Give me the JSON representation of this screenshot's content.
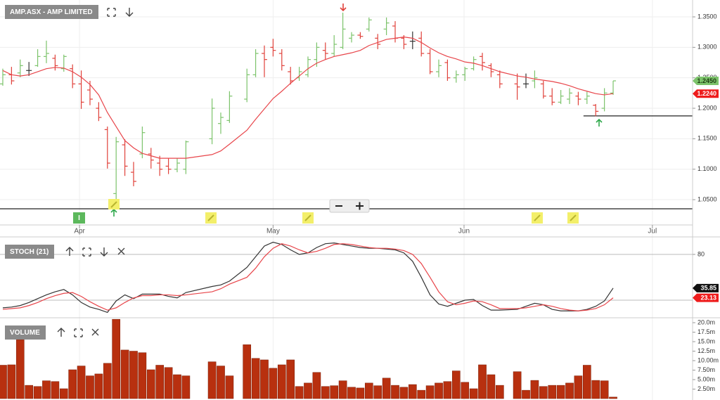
{
  "chart_data": [
    {
      "type": "ohlc",
      "title": "AMP.ASX - AMP LIMITED",
      "annotation": "I",
      "x": [
        0,
        1,
        2,
        3,
        4,
        5,
        6,
        7,
        8,
        9,
        10,
        11,
        12,
        13,
        14,
        15,
        16,
        17,
        18,
        19,
        20,
        21,
        24,
        25,
        26,
        28,
        29,
        30,
        31,
        32,
        33,
        34,
        35,
        36,
        37,
        38,
        39,
        40,
        41,
        42,
        43,
        44,
        45,
        46,
        47,
        48,
        49,
        50,
        51,
        52,
        53,
        54,
        55,
        56,
        57,
        59,
        60,
        61,
        62,
        63,
        64,
        65,
        66,
        67,
        68,
        69,
        70
      ],
      "open": [
        1.24,
        1.255,
        1.258,
        1.262,
        1.27,
        1.285,
        1.282,
        1.265,
        1.265,
        1.24,
        1.23,
        1.2,
        1.165,
        1.06,
        1.14,
        1.095,
        1.125,
        1.125,
        1.11,
        1.105,
        1.1,
        1.1,
        1.15,
        1.175,
        1.18,
        1.215,
        1.255,
        1.29,
        1.3,
        1.29,
        1.26,
        1.25,
        1.255,
        1.28,
        1.295,
        1.29,
        1.3,
        1.315,
        1.32,
        1.33,
        1.315,
        1.33,
        1.335,
        1.315,
        1.31,
        1.315,
        1.29,
        1.26,
        1.275,
        1.25,
        1.255,
        1.265,
        1.285,
        1.27,
        1.255,
        1.24,
        1.24,
        1.245,
        1.24,
        1.22,
        1.21,
        1.215,
        1.22,
        1.215,
        1.205,
        1.2,
        1.225
      ],
      "high": [
        1.265,
        1.268,
        1.28,
        1.276,
        1.297,
        1.311,
        1.288,
        1.288,
        1.272,
        1.262,
        1.245,
        1.21,
        1.17,
        1.153,
        1.149,
        1.112,
        1.17,
        1.135,
        1.122,
        1.118,
        1.118,
        1.147,
        1.216,
        1.193,
        1.228,
        1.265,
        1.297,
        1.303,
        1.314,
        1.297,
        1.268,
        1.268,
        1.285,
        1.308,
        1.308,
        1.32,
        1.357,
        1.325,
        1.325,
        1.349,
        1.322,
        1.349,
        1.343,
        1.32,
        1.326,
        1.326,
        1.297,
        1.28,
        1.28,
        1.262,
        1.268,
        1.285,
        1.291,
        1.274,
        1.262,
        1.257,
        1.257,
        1.262,
        1.245,
        1.233,
        1.23,
        1.233,
        1.227,
        1.227,
        1.207,
        1.233,
        1.245
      ],
      "low": [
        1.237,
        1.239,
        1.251,
        1.253,
        1.268,
        1.274,
        1.262,
        1.26,
        1.233,
        1.199,
        1.205,
        1.179,
        1.101,
        1.043,
        1.089,
        1.072,
        1.118,
        1.101,
        1.089,
        1.092,
        1.095,
        1.092,
        1.141,
        1.158,
        1.176,
        1.21,
        1.251,
        1.251,
        1.285,
        1.262,
        1.239,
        1.245,
        1.251,
        1.268,
        1.28,
        1.285,
        1.297,
        1.308,
        1.314,
        1.326,
        1.297,
        1.32,
        1.308,
        1.297,
        1.297,
        1.285,
        1.256,
        1.251,
        1.245,
        1.242,
        1.245,
        1.262,
        1.262,
        1.251,
        1.233,
        1.214,
        1.233,
        1.233,
        1.216,
        1.205,
        1.207,
        1.207,
        1.205,
        1.207,
        1.187,
        1.195,
        1.222
      ],
      "close": [
        1.255,
        1.245,
        1.27,
        1.262,
        1.285,
        1.29,
        1.27,
        1.285,
        1.24,
        1.21,
        1.215,
        1.185,
        1.11,
        1.145,
        1.105,
        1.08,
        1.16,
        1.115,
        1.1,
        1.1,
        1.11,
        1.145,
        1.2,
        1.185,
        1.22,
        1.255,
        1.29,
        1.28,
        1.295,
        1.27,
        1.245,
        1.26,
        1.28,
        1.3,
        1.29,
        1.305,
        1.33,
        1.32,
        1.318,
        1.345,
        1.305,
        1.34,
        1.315,
        1.305,
        1.31,
        1.29,
        1.26,
        1.27,
        1.25,
        1.255,
        1.265,
        1.28,
        1.275,
        1.26,
        1.24,
        1.235,
        1.24,
        1.25,
        1.22,
        1.21,
        1.22,
        1.225,
        1.215,
        1.22,
        1.195,
        1.225,
        1.245
      ],
      "close_last_label": "1.2450",
      "up_color": "#7cc36b",
      "down_color": "#e0413a",
      "flat_color": "#333333",
      "overlay": {
        "color": "#e8454a",
        "last_label": "1.2240",
        "values": [
          1.262,
          1.255,
          1.253,
          1.255,
          1.26,
          1.265,
          1.267,
          1.266,
          1.26,
          1.251,
          1.239,
          1.222,
          1.193,
          1.17,
          1.147,
          1.135,
          1.126,
          1.122,
          1.118,
          1.118,
          1.118,
          1.118,
          1.124,
          1.13,
          1.141,
          1.164,
          1.182,
          1.199,
          1.216,
          1.228,
          1.241,
          1.253,
          1.265,
          1.274,
          1.28,
          1.285,
          1.288,
          1.291,
          1.295,
          1.303,
          1.308,
          1.313,
          1.315,
          1.317,
          1.315,
          1.308,
          1.299,
          1.291,
          1.285,
          1.281,
          1.276,
          1.274,
          1.27,
          1.265,
          1.26,
          1.253,
          1.251,
          1.248,
          1.246,
          1.244,
          1.241,
          1.237,
          1.232,
          1.228,
          1.224,
          1.222,
          1.224
        ]
      },
      "levels": [
        {
          "value": 1.1875,
          "from": 66.6
        },
        {
          "value": 1.035
        }
      ],
      "xlim": [
        -0.32,
        79.11
      ],
      "ylim": [
        1.0085,
        1.3777
      ],
      "xticks": [
        {
          "value": 8.8,
          "label": "Apr"
        },
        {
          "value": 31,
          "label": "May"
        },
        {
          "value": 52.9,
          "label": "Jun"
        },
        {
          "value": 74.5,
          "label": "Jul"
        }
      ],
      "yticks": [
        {
          "value": 1.05,
          "label": "1.0500"
        },
        {
          "value": 1.1,
          "label": "1.1000"
        },
        {
          "value": 1.15,
          "label": "1.1500"
        },
        {
          "value": 1.2,
          "label": "1.2000"
        },
        {
          "value": 1.25,
          "label": "1.2500"
        },
        {
          "value": 1.3,
          "label": "1.3000"
        },
        {
          "value": 1.35,
          "label": "1.3500"
        }
      ],
      "grid": true
    },
    {
      "type": "line",
      "title": "STOCH (21)",
      "x": [
        0,
        1,
        2,
        3,
        4,
        5,
        6,
        7,
        8,
        9,
        10,
        11,
        12,
        13,
        14,
        15,
        16,
        17,
        18,
        19,
        20,
        21,
        24,
        25,
        26,
        28,
        29,
        30,
        31,
        32,
        33,
        34,
        35,
        36,
        37,
        38,
        39,
        40,
        41,
        42,
        43,
        44,
        45,
        46,
        47,
        48,
        49,
        50,
        51,
        52,
        53,
        54,
        55,
        56,
        57,
        59,
        60,
        61,
        62,
        63,
        64,
        65,
        66,
        67,
        68,
        69,
        70
      ],
      "series": [
        {
          "color": "#333333",
          "last_label": "35.85",
          "values": [
            10,
            11,
            13,
            17,
            22,
            27,
            31,
            34,
            27,
            17,
            11,
            8,
            4,
            19,
            27,
            22,
            28,
            28,
            28,
            25,
            23,
            30,
            38,
            40,
            45,
            63,
            77,
            91,
            96,
            93,
            86,
            80,
            82,
            89,
            94,
            95,
            93,
            91,
            89,
            88,
            88,
            87,
            86,
            82,
            71,
            50,
            27,
            15,
            12,
            16,
            20,
            21,
            13,
            7,
            7,
            8,
            12,
            16,
            14,
            8,
            6,
            6,
            6,
            8,
            12,
            19,
            35.85
          ]
        },
        {
          "color": "#e8454a",
          "last_label": "23.13",
          "values": [
            8,
            9,
            10,
            13,
            17,
            22,
            26,
            29,
            30,
            25,
            18,
            12,
            7,
            10,
            17,
            23,
            26,
            26,
            27,
            27,
            26,
            27,
            31,
            35,
            41,
            50,
            62,
            77,
            88,
            94,
            91,
            86,
            82,
            84,
            88,
            93,
            94,
            93,
            91,
            89,
            88,
            88,
            87,
            85,
            80,
            68,
            50,
            31,
            18,
            14,
            16,
            19,
            18,
            14,
            9,
            9,
            10,
            12,
            14,
            12,
            9,
            7,
            6,
            7,
            9,
            14,
            23.13
          ]
        }
      ],
      "levels": [
        20,
        80
      ],
      "xlim": [
        -0.32,
        79.11
      ],
      "ylim": [
        -3,
        102
      ],
      "yticks": [
        80
      ]
    },
    {
      "type": "bar",
      "title": "VOLUME",
      "color": "#b8300f",
      "x": [
        0,
        1,
        2,
        3,
        4,
        5,
        6,
        7,
        8,
        9,
        10,
        11,
        12,
        13,
        14,
        15,
        16,
        17,
        18,
        19,
        20,
        21,
        24,
        25,
        26,
        28,
        29,
        30,
        31,
        32,
        33,
        34,
        35,
        36,
        37,
        38,
        39,
        40,
        41,
        42,
        43,
        44,
        45,
        46,
        47,
        48,
        49,
        50,
        51,
        52,
        53,
        54,
        55,
        56,
        57,
        59,
        60,
        61,
        62,
        63,
        64,
        65,
        66,
        67,
        68,
        69,
        70
      ],
      "values": [
        8.8,
        8.9,
        15.5,
        3.5,
        3.2,
        4.7,
        4.5,
        2.6,
        7.6,
        8.6,
        6.0,
        6.5,
        9.3,
        20.9,
        12.8,
        12.5,
        12.1,
        7.6,
        8.8,
        8.2,
        6.3,
        6.0,
        9.7,
        8.6,
        6.0,
        14.2,
        10.6,
        10.2,
        8.0,
        8.9,
        10.2,
        3.2,
        4.1,
        6.9,
        3.2,
        3.4,
        4.7,
        3.0,
        2.8,
        4.1,
        3.4,
        5.4,
        3.5,
        3.0,
        3.7,
        2.2,
        3.4,
        4.1,
        4.5,
        7.3,
        4.3,
        2.6,
        8.9,
        6.3,
        3.5,
        7.1,
        2.2,
        4.8,
        3.2,
        3.5,
        3.5,
        4.1,
        6.0,
        8.8,
        4.8,
        4.7,
        0.4
      ],
      "xlim": [
        -0.32,
        79.11
      ],
      "ylim": [
        0,
        21.3
      ],
      "yticks": [
        {
          "value": 2.5,
          "label": "2.50m"
        },
        {
          "value": 5,
          "label": "5.00m"
        },
        {
          "value": 7.5,
          "label": "7.50m"
        },
        {
          "value": 10,
          "label": "10.00m"
        },
        {
          "value": 12.5,
          "label": "12.5m"
        },
        {
          "value": 15,
          "label": "15.0m"
        },
        {
          "value": 17.5,
          "label": "17.5m"
        },
        {
          "value": 20,
          "label": "20.0m"
        }
      ]
    }
  ]
}
